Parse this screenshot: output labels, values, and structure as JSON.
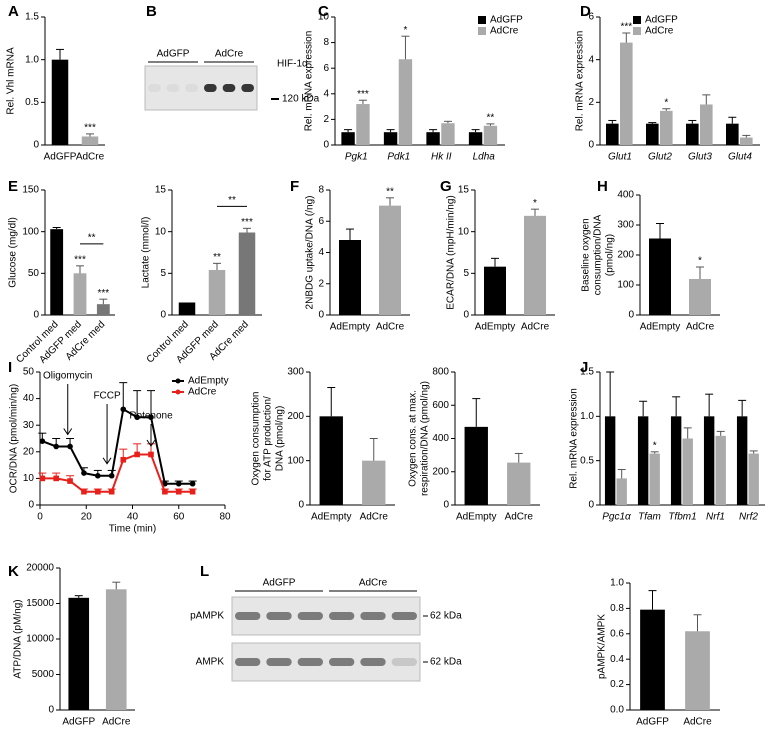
{
  "chart_data": [
    {
      "type": "bar",
      "panel": "A",
      "ylabel": "Rel. Vhl mRNA",
      "categories": [
        "AdGFP",
        "AdCre"
      ],
      "values": [
        1.0,
        0.1
      ],
      "errors": [
        0.12,
        0.03
      ],
      "colors": [
        "#000000",
        "#aaaaaa"
      ],
      "significance": [
        null,
        "***"
      ],
      "ylim": [
        0,
        1.5
      ],
      "yticks": [
        0,
        0.5,
        {
          "value": 1,
          "label": "1.0"
        },
        1.5
      ]
    },
    {
      "type": "blot",
      "panel": "B",
      "groups": [
        "AdGFP",
        "AdCre"
      ],
      "bands": [
        {
          "name": "HIF-1α",
          "marker": "120 kDa"
        }
      ]
    },
    {
      "type": "bar",
      "panel": "C",
      "ylabel": "Rel. mRNA expression",
      "categories": [
        "Pgk1",
        "Pdk1",
        "Hk II",
        "Ldha"
      ],
      "series": [
        {
          "name": "AdGFP",
          "color": "#000000",
          "values": [
            1,
            1,
            1,
            1
          ],
          "errors": [
            0.2,
            0.2,
            0.2,
            0.2
          ],
          "significance": [
            null,
            null,
            null,
            null
          ]
        },
        {
          "name": "AdCre",
          "color": "#aaaaaa",
          "values": [
            3.2,
            6.7,
            1.7,
            1.5
          ],
          "errors": [
            0.3,
            1.8,
            0.15,
            0.15
          ],
          "significance": [
            "***",
            "*",
            null,
            "**"
          ]
        }
      ],
      "ylim": [
        0,
        10
      ],
      "yticks": [
        0,
        2,
        4,
        6,
        8,
        10
      ]
    },
    {
      "type": "bar",
      "panel": "D",
      "ylabel": "Rel. mRNA expression",
      "categories": [
        "Glut1",
        "Glut2",
        "Glut3",
        "Glut4"
      ],
      "series": [
        {
          "name": "AdGFP",
          "color": "#000000",
          "values": [
            1,
            1,
            1,
            1
          ],
          "errors": [
            0.15,
            0.05,
            0.15,
            0.3
          ],
          "significance": [
            null,
            null,
            null,
            null
          ]
        },
        {
          "name": "AdCre",
          "color": "#aaaaaa",
          "values": [
            4.8,
            1.6,
            1.9,
            0.35
          ],
          "errors": [
            0.45,
            0.1,
            0.45,
            0.1
          ],
          "significance": [
            "***",
            "*",
            null,
            null
          ]
        }
      ],
      "ylim": [
        0,
        6
      ],
      "yticks": [
        0,
        2,
        4,
        6
      ]
    },
    {
      "type": "bar",
      "panel": "E",
      "ylabel": "Glucose (mg/dl)",
      "categories": [
        "Control med",
        "AdGFP med",
        "AdCre med"
      ],
      "values": [
        103,
        50,
        13
      ],
      "errors": [
        2,
        9,
        6
      ],
      "colors": [
        "#000000",
        "#aaaaaa",
        "#777777"
      ],
      "significance": [
        null,
        "***",
        "***"
      ],
      "comparisons": [
        {
          "from": "AdGFP med",
          "to": "AdCre med",
          "label": "**"
        }
      ],
      "ylim": [
        0,
        150
      ],
      "yticks": [
        0,
        50,
        100,
        150
      ]
    },
    {
      "type": "bar",
      "ylabel": "Lactate (mmol/l)",
      "categories": [
        "Control med",
        "AdGFP med",
        "AdCre med"
      ],
      "values": [
        1.5,
        5.4,
        9.9
      ],
      "errors": [
        0,
        0.8,
        0.5
      ],
      "colors": [
        "#000000",
        "#aaaaaa",
        "#777777"
      ],
      "significance": [
        null,
        "**",
        "***"
      ],
      "comparisons": [
        {
          "from": "AdGFP med",
          "to": "AdCre med",
          "label": "**"
        }
      ],
      "ylim": [
        0,
        15
      ],
      "yticks": [
        0,
        5,
        10,
        15
      ]
    },
    {
      "type": "bar",
      "panel": "F",
      "ylabel": "2NBDG uptake/DNA (/ng)",
      "categories": [
        "AdEmpty",
        "AdCre"
      ],
      "values": [
        4.8,
        7.0
      ],
      "errors": [
        0.7,
        0.5
      ],
      "colors": [
        "#000000",
        "#aaaaaa"
      ],
      "significance": [
        null,
        "**"
      ],
      "ylim": [
        0,
        8
      ],
      "yticks": [
        0,
        2,
        4,
        6,
        8
      ]
    },
    {
      "type": "bar",
      "panel": "G",
      "ylabel": "ECAR/DNA (mpH/min/ng)",
      "categories": [
        "AdEmpty",
        "AdCre"
      ],
      "values": [
        5.8,
        11.9
      ],
      "errors": [
        1.0,
        0.8
      ],
      "colors": [
        "#000000",
        "#aaaaaa"
      ],
      "significance": [
        null,
        "*"
      ],
      "ylim": [
        0,
        15
      ],
      "yticks": [
        0,
        5,
        10,
        15
      ]
    },
    {
      "type": "bar",
      "panel": "H",
      "ylabel": [
        "Baseline oxygen",
        "consumption/DNA",
        "(pmol/ng)"
      ],
      "categories": [
        "AdEmpty",
        "AdCre"
      ],
      "values": [
        255,
        120
      ],
      "errors": [
        50,
        40
      ],
      "colors": [
        "#000000",
        "#aaaaaa"
      ],
      "significance": [
        null,
        "*"
      ],
      "ylim": [
        0,
        400
      ],
      "yticks": [
        0,
        100,
        200,
        300,
        400
      ]
    },
    {
      "type": "line",
      "panel": "I",
      "ylabel": "OCR/DNA (pmol/min/ng)",
      "xlabel": "Time (min)",
      "x": [
        1,
        7,
        13,
        19,
        25,
        31,
        36,
        42,
        48,
        54,
        60,
        66
      ],
      "series": [
        {
          "name": "AdEmpty",
          "color": "#000000",
          "values": [
            24,
            22,
            22,
            12,
            11,
            11,
            36,
            33,
            33,
            8,
            8,
            8
          ],
          "errors": [
            3,
            3,
            3,
            2,
            2,
            2,
            10,
            10,
            10,
            1,
            1,
            1
          ]
        },
        {
          "name": "AdCre",
          "color": "#e8201c",
          "values": [
            10,
            10,
            9,
            5,
            5,
            5,
            17,
            19,
            19,
            5,
            5,
            5
          ],
          "errors": [
            2,
            2,
            2,
            1,
            1,
            1,
            4,
            4,
            4,
            1,
            1,
            1
          ]
        }
      ],
      "events": [
        {
          "label": "Oligomycin",
          "x": 12
        },
        {
          "label": "FCCP",
          "x": 29
        },
        {
          "label": "Rotenone",
          "x": 48
        }
      ],
      "xlim": [
        0,
        80
      ],
      "xticks": [
        0,
        20,
        40,
        60,
        80
      ],
      "ylim": [
        0,
        50
      ],
      "yticks": [
        0,
        10,
        20,
        30,
        40,
        50
      ]
    },
    {
      "type": "bar",
      "ylabel": [
        "Oxygen consumption",
        "for ATP production/",
        "DNA (pmol/ng)"
      ],
      "categories": [
        "AdEmpty",
        "AdCre"
      ],
      "values": [
        200,
        100
      ],
      "errors": [
        65,
        50
      ],
      "colors": [
        "#000000",
        "#aaaaaa"
      ],
      "ylim": [
        0,
        300
      ],
      "yticks": [
        0,
        100,
        200,
        300
      ]
    },
    {
      "type": "bar",
      "ylabel": [
        "Oxygen cons. at max.",
        "respiration/DNA (pmol/ng)"
      ],
      "categories": [
        "AdEmpty",
        "AdCre"
      ],
      "values": [
        470,
        255
      ],
      "errors": [
        170,
        55
      ],
      "colors": [
        "#000000",
        "#aaaaaa"
      ],
      "ylim": [
        0,
        800
      ],
      "yticks": [
        0,
        200,
        400,
        600,
        800
      ]
    },
    {
      "type": "bar",
      "panel": "J",
      "ylabel": "Rel. mRNA expression",
      "categories": [
        "Pgc1α",
        "Tfam",
        "Tfbm1",
        "Nrf1",
        "Nrf2"
      ],
      "series": [
        {
          "name": "AdGFP",
          "color": "#000000",
          "values": [
            1,
            1,
            1,
            1,
            1
          ],
          "errors": [
            0.5,
            0.17,
            0.22,
            0.25,
            0.18
          ],
          "significance": [
            null,
            null,
            null,
            null,
            null
          ]
        },
        {
          "name": "AdCre",
          "color": "#aaaaaa",
          "values": [
            0.3,
            0.58,
            0.75,
            0.78,
            0.58
          ],
          "errors": [
            0.1,
            0.02,
            0.12,
            0.05,
            0.03
          ],
          "significance": [
            null,
            "*",
            null,
            null,
            null
          ]
        }
      ],
      "ylim": [
        0,
        1.5
      ],
      "yticks": [
        0,
        0.5,
        {
          "value": 1,
          "label": "1.0"
        },
        1.5
      ]
    },
    {
      "type": "bar",
      "panel": "K",
      "ylabel": "ATP/DNA (pM/ng)",
      "categories": [
        "AdGFP",
        "AdCre"
      ],
      "values": [
        15800,
        17000
      ],
      "errors": [
        300,
        1000
      ],
      "colors": [
        "#000000",
        "#aaaaaa"
      ],
      "ylim": [
        0,
        20000
      ],
      "yticks": [
        0,
        5000,
        10000,
        15000,
        20000
      ]
    },
    {
      "type": "blot",
      "panel": "L",
      "groups": [
        "AdGFP",
        "AdCre"
      ],
      "bands": [
        {
          "name": "pAMPK",
          "marker": "62 kDa"
        },
        {
          "name": "AMPK",
          "marker": "62 kDa"
        }
      ]
    },
    {
      "type": "bar",
      "ylabel": "pAMPK/AMPK",
      "categories": [
        "AdGFP",
        "AdCre"
      ],
      "values": [
        0.79,
        0.62
      ],
      "errors": [
        0.15,
        0.13
      ],
      "colors": [
        "#000000",
        "#aaaaaa"
      ],
      "ylim": [
        0,
        1
      ],
      "yticks": [
        {
          "value": 0,
          "label": "0.0"
        },
        0.2,
        0.4,
        0.6,
        0.8,
        {
          "value": 1,
          "label": "1.0"
        }
      ]
    }
  ]
}
